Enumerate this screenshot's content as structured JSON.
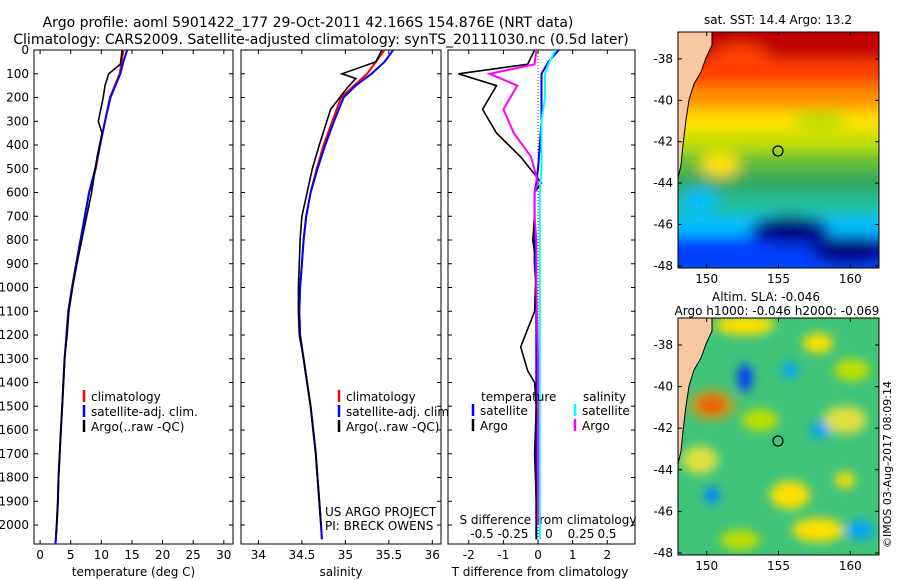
{
  "header": {
    "line1": "Argo profile: aoml 5901422_177 29-Oct-2011 42.166S 154.876E (NRT data)",
    "line2": "Climatology: CARS2009. Satellite-adjusted climatology: synTS_20111030.nc (0.5d later)"
  },
  "chart_data": [
    {
      "type": "line",
      "panel": "temperature",
      "xlabel": "temperature (deg C)",
      "ylabel": "",
      "xlim": [
        -1,
        31.5
      ],
      "ylim": [
        2080,
        0
      ],
      "xticks": [
        0,
        5,
        10,
        15,
        20,
        25,
        30
      ],
      "yticks": [
        0,
        100,
        200,
        300,
        400,
        500,
        600,
        700,
        800,
        900,
        1000,
        1100,
        1200,
        1300,
        1400,
        1500,
        1600,
        1700,
        1800,
        1900,
        2000
      ],
      "legend": [
        "climatology",
        "satellite-adj. clim.",
        "Argo(..raw -QC)"
      ],
      "series": [
        {
          "name": "climatology",
          "color": "#ff0000",
          "x": [
            13.6,
            13.3,
            13.0,
            12.2,
            11.4,
            10.6,
            9.8,
            9.1,
            8.0,
            7.3,
            6.6,
            5.9,
            5.2,
            4.6,
            4.3,
            4.0,
            3.8,
            3.6,
            3.4,
            3.2,
            3.0,
            2.9,
            2.7,
            2.6,
            2.5
          ],
          "y": [
            0,
            50,
            100,
            150,
            200,
            300,
            400,
            500,
            600,
            700,
            800,
            900,
            1000,
            1100,
            1200,
            1300,
            1400,
            1500,
            1600,
            1700,
            1800,
            1900,
            2000,
            2050,
            2080
          ]
        },
        {
          "name": "satellite-adj. clim.",
          "color": "#0000ff",
          "x": [
            14.2,
            13.6,
            13.1,
            12.3,
            11.5,
            10.6,
            9.8,
            9.0,
            8.0,
            7.3,
            6.6,
            5.9,
            5.2,
            4.6,
            4.3,
            4.0,
            3.8,
            3.6,
            3.4,
            3.2,
            3.0,
            2.9,
            2.7,
            2.6,
            2.5
          ],
          "y": [
            0,
            50,
            100,
            150,
            200,
            300,
            400,
            500,
            600,
            700,
            800,
            900,
            1000,
            1100,
            1200,
            1300,
            1400,
            1500,
            1600,
            1700,
            1800,
            1900,
            2000,
            2050,
            2080
          ]
        },
        {
          "name": "Argo(..raw -QC)",
          "color": "#000000",
          "x": [
            13.4,
            13.1,
            11.2,
            10.6,
            10.3,
            9.5,
            10.1,
            9.3,
            8.4,
            7.6,
            6.8,
            6.0,
            5.3,
            4.7,
            4.4,
            4.0,
            3.8,
            3.6,
            3.4,
            3.2,
            3.0,
            2.9,
            2.7,
            2.6
          ],
          "y": [
            0,
            60,
            100,
            150,
            200,
            300,
            350,
            450,
            600,
            700,
            800,
            900,
            1000,
            1100,
            1200,
            1300,
            1400,
            1500,
            1600,
            1700,
            1800,
            1900,
            2000,
            2040
          ]
        }
      ]
    },
    {
      "type": "line",
      "panel": "salinity",
      "xlabel": "salinity",
      "ylabel": "",
      "xlim": [
        33.8,
        36.1
      ],
      "ylim": [
        2080,
        0
      ],
      "xticks": [
        34,
        34.5,
        35,
        35.5,
        36
      ],
      "legend": [
        "climatology",
        "satellite-adj. clim.",
        "Argo(..raw -QC)"
      ],
      "annotation": [
        "US ARGO PROJECT",
        "PI: BRECK OWENS"
      ],
      "series": [
        {
          "name": "climatology",
          "color": "#ff0000",
          "x": [
            35.45,
            35.35,
            35.25,
            35.1,
            34.95,
            34.85,
            34.75,
            34.67,
            34.6,
            34.55,
            34.52,
            34.5,
            34.48,
            34.47,
            34.48,
            34.52,
            34.56,
            34.6,
            34.63,
            34.66,
            34.68,
            34.7,
            34.72,
            34.73
          ],
          "y": [
            0,
            50,
            100,
            150,
            200,
            300,
            400,
            500,
            600,
            700,
            800,
            900,
            1000,
            1100,
            1200,
            1300,
            1400,
            1500,
            1600,
            1700,
            1800,
            1900,
            2000,
            2060
          ]
        },
        {
          "name": "satellite-adj. clim.",
          "color": "#0000ff",
          "x": [
            35.55,
            35.45,
            35.3,
            35.12,
            34.98,
            34.87,
            34.77,
            34.68,
            34.6,
            34.55,
            34.52,
            34.5,
            34.48,
            34.47,
            34.48,
            34.52,
            34.56,
            34.6,
            34.63,
            34.66,
            34.68,
            34.7,
            34.72,
            34.73
          ],
          "y": [
            0,
            50,
            100,
            150,
            200,
            300,
            400,
            500,
            600,
            700,
            800,
            900,
            1000,
            1100,
            1200,
            1300,
            1400,
            1500,
            1600,
            1700,
            1800,
            1900,
            2000,
            2060
          ]
        },
        {
          "name": "Argo(..raw -QC)",
          "color": "#000000",
          "x": [
            35.42,
            35.35,
            34.96,
            35.12,
            35.02,
            34.83,
            34.7,
            34.62,
            34.56,
            34.5,
            34.48,
            34.47,
            34.46,
            34.46,
            34.47,
            34.52,
            34.56,
            34.6,
            34.63,
            34.66,
            34.68,
            34.7,
            34.72
          ],
          "y": [
            0,
            50,
            100,
            120,
            160,
            250,
            400,
            500,
            600,
            700,
            800,
            900,
            1000,
            1100,
            1200,
            1300,
            1400,
            1500,
            1600,
            1700,
            1800,
            1900,
            2000
          ]
        }
      ]
    },
    {
      "type": "line",
      "panel": "difference",
      "xlabel": "T difference from climatology",
      "xlabel2": "S difference from climatology",
      "ylabel": "",
      "xlim": [
        -2.6,
        2.8
      ],
      "ylim": [
        2080,
        0
      ],
      "xticks_T": [
        -2,
        -1,
        0,
        1,
        2
      ],
      "xticks_S": [
        "-0.5",
        "-0.25",
        "0",
        "0.25",
        "0.5"
      ],
      "legend_headers": [
        "temperature",
        "salinity"
      ],
      "legend": [
        "satellite",
        "Argo",
        "satellite",
        "Argo"
      ],
      "series": [
        {
          "name": "temperature satellite",
          "color": "#0000ff",
          "x": [
            0.6,
            0.3,
            0.1,
            0.1,
            0.1,
            0.05,
            0.0,
            -0.05,
            -0.1,
            -0.1,
            -0.1,
            -0.1,
            -0.05,
            -0.05,
            -0.05,
            -0.05,
            -0.05,
            -0.05,
            -0.05,
            -0.05
          ],
          "y": [
            0,
            50,
            100,
            200,
            300,
            400,
            500,
            560,
            600,
            700,
            800,
            900,
            1000,
            1100,
            1200,
            1300,
            1500,
            1700,
            1900,
            2060
          ]
        },
        {
          "name": "temperature Argo",
          "color": "#000000",
          "x": [
            -0.1,
            -0.3,
            -2.3,
            -1.2,
            -1.6,
            -1.2,
            -0.5,
            0.1,
            -0.1,
            -0.1,
            -0.15,
            -0.05,
            -0.1,
            -0.5,
            -0.3,
            -0.1,
            -0.05,
            -0.1,
            -0.05,
            -0.05
          ],
          "y": [
            0,
            60,
            100,
            150,
            250,
            350,
            450,
            560,
            600,
            700,
            800,
            900,
            1100,
            1250,
            1350,
            1400,
            1500,
            1700,
            1900,
            2060
          ]
        },
        {
          "name": "salinity satellite",
          "color": "#00ffff",
          "x": [
            0.5,
            0.3,
            0.2,
            0.2,
            0.1,
            0.1,
            0.1,
            0.05,
            0.05,
            0.05,
            0.05,
            0.05,
            0.05,
            0.05
          ],
          "y": [
            0,
            60,
            100,
            200,
            300,
            400,
            500,
            600,
            800,
            1000,
            1200,
            1500,
            1800,
            2060
          ]
        },
        {
          "name": "salinity Argo",
          "color": "#ff00ff",
          "x": [
            -0.05,
            -0.1,
            -1.4,
            -0.6,
            -1.0,
            -0.7,
            -0.2,
            0.0,
            -0.1,
            -0.1,
            -0.05,
            -0.05,
            0.0,
            0.0,
            0.0
          ],
          "y": [
            0,
            60,
            100,
            150,
            250,
            350,
            450,
            560,
            600,
            700,
            800,
            1000,
            1300,
            1600,
            2000
          ]
        }
      ]
    }
  ],
  "maps": {
    "sst": {
      "title": "sat. SST: 14.4  Argo: 13.2",
      "xticks": [
        "150",
        "155",
        "160"
      ],
      "yticks": [
        "-38",
        "-40",
        "-42",
        "-44",
        "-46",
        "-48"
      ],
      "palette": [
        "#00007f",
        "#0040ff",
        "#00c0ff",
        "#20c0a0",
        "#30a860",
        "#60c030",
        "#c0e000",
        "#ffe000",
        "#ff9000",
        "#ff4000",
        "#c00000"
      ],
      "land_color": "#f8c8a0"
    },
    "sla": {
      "title1": "Altim. SLA: -0.046",
      "title2": "Argo h1000: -0.046 h2000: -0.069",
      "xticks": [
        "150",
        "155",
        "160"
      ],
      "yticks": [
        "-38",
        "-40",
        "-42",
        "-44",
        "-46",
        "-48"
      ],
      "land_color": "#f8c8a0"
    },
    "credit": "©IMOS 03-Aug-2017 08:09:14"
  }
}
